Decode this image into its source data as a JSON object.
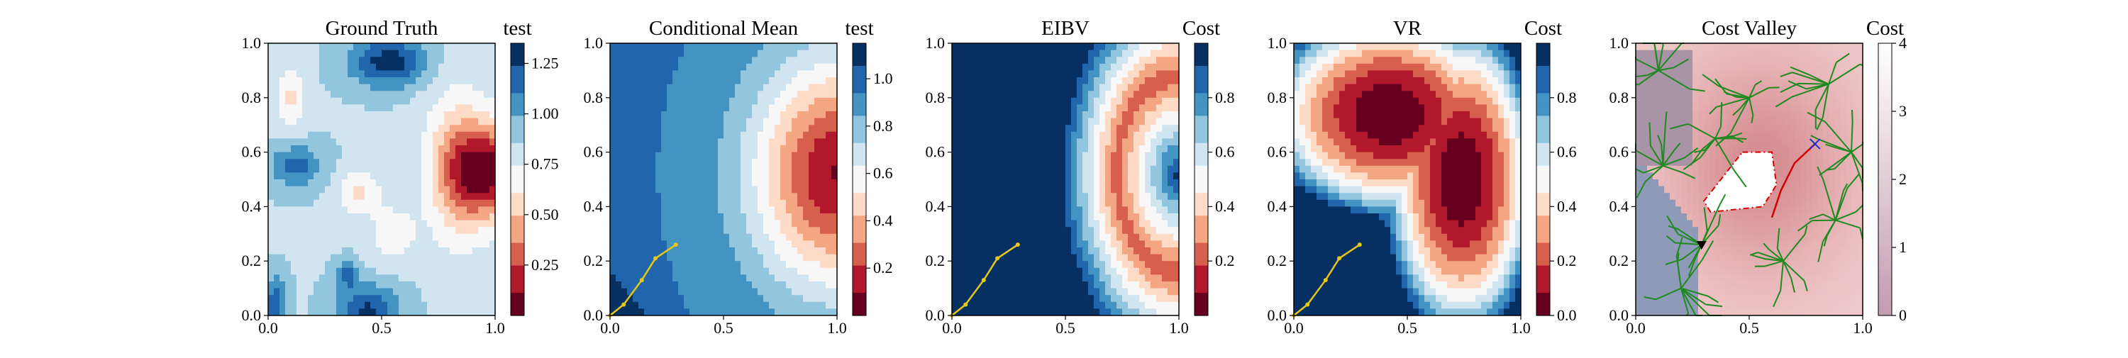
{
  "figure": {
    "panels": [
      {
        "title": "Ground Truth",
        "colorbar_label": "test",
        "field": "truth",
        "colorbar_ticks": [
          "0.25",
          "0.50",
          "0.75",
          "1.00",
          "1.25"
        ],
        "colorbar_tick_values": [
          0.25,
          0.5,
          0.75,
          1.0,
          1.25
        ],
        "colorbar_range": [
          0.0,
          1.35
        ],
        "overlay": "none"
      },
      {
        "title": "Conditional Mean",
        "colorbar_label": "test",
        "field": "mean",
        "colorbar_ticks": [
          "0.2",
          "0.4",
          "0.6",
          "0.8",
          "1.0"
        ],
        "colorbar_tick_values": [
          0.2,
          0.4,
          0.6,
          0.8,
          1.0
        ],
        "colorbar_range": [
          0.0,
          1.15
        ],
        "overlay": "path"
      },
      {
        "title": "EIBV",
        "colorbar_label": "Cost",
        "field": "eibv",
        "colorbar_ticks": [
          "0.2",
          "0.4",
          "0.6",
          "0.8"
        ],
        "colorbar_tick_values": [
          0.2,
          0.4,
          0.6,
          0.8
        ],
        "colorbar_range": [
          0.0,
          1.0
        ],
        "overlay": "path"
      },
      {
        "title": "VR",
        "colorbar_label": "Cost",
        "field": "vr",
        "colorbar_ticks": [
          "0.0",
          "0.2",
          "0.4",
          "0.6",
          "0.8"
        ],
        "colorbar_tick_values": [
          0.0,
          0.2,
          0.4,
          0.6,
          0.8
        ],
        "colorbar_range": [
          0.0,
          1.0
        ],
        "overlay": "path"
      },
      {
        "title": "Cost Valley",
        "colorbar_label": "Cost",
        "field": "valley",
        "colorbar_ticks": [
          "0",
          "1",
          "2",
          "3",
          "4"
        ],
        "colorbar_tick_values": [
          0,
          1,
          2,
          3,
          4
        ],
        "colorbar_range": [
          0,
          4
        ],
        "overlay": "tree"
      }
    ],
    "x_ticks": [
      "0.0",
      "0.5",
      "1.0"
    ],
    "y_ticks": [
      "0.0",
      "0.2",
      "0.4",
      "0.6",
      "0.8",
      "1.0"
    ],
    "colors": {
      "diverging": [
        "#67001f",
        "#b2182b",
        "#d6604d",
        "#f4a582",
        "#fddbc7",
        "#f7f7f7",
        "#d1e5f0",
        "#92c5de",
        "#4393c3",
        "#2166ac",
        "#053061"
      ],
      "path": "#e6c619",
      "tree": "#1f8a1f",
      "route": "#d40000",
      "target_marker": "#1f2fd0",
      "start_marker": "#000000"
    }
  },
  "chart_data": [
    {
      "type": "heatmap",
      "title": "Ground Truth",
      "xlim": [
        0,
        1
      ],
      "ylim": [
        0,
        1
      ],
      "colorbar": {
        "label": "test",
        "range": [
          0.0,
          1.35
        ],
        "ticks": [
          0.25,
          0.5,
          0.75,
          1.0,
          1.25
        ]
      },
      "grid": false
    },
    {
      "type": "heatmap",
      "title": "Conditional Mean",
      "xlim": [
        0,
        1
      ],
      "ylim": [
        0,
        1
      ],
      "colorbar": {
        "label": "test",
        "range": [
          0.0,
          1.15
        ],
        "ticks": [
          0.2,
          0.4,
          0.6,
          0.8,
          1.0
        ]
      },
      "path": {
        "x": [
          0.0,
          0.06,
          0.14,
          0.2,
          0.29
        ],
        "y": [
          0.0,
          0.04,
          0.13,
          0.21,
          0.26
        ]
      },
      "grid": false
    },
    {
      "type": "heatmap",
      "title": "EIBV",
      "xlim": [
        0,
        1
      ],
      "ylim": [
        0,
        1
      ],
      "colorbar": {
        "label": "Cost",
        "range": [
          0.0,
          1.0
        ],
        "ticks": [
          0.2,
          0.4,
          0.6,
          0.8
        ]
      },
      "path": {
        "x": [
          0.0,
          0.06,
          0.14,
          0.2,
          0.29
        ],
        "y": [
          0.0,
          0.04,
          0.13,
          0.21,
          0.26
        ]
      },
      "grid": false
    },
    {
      "type": "heatmap",
      "title": "VR",
      "xlim": [
        0,
        1
      ],
      "ylim": [
        0,
        1
      ],
      "colorbar": {
        "label": "Cost",
        "range": [
          0.0,
          1.0
        ],
        "ticks": [
          0.0,
          0.2,
          0.4,
          0.6,
          0.8
        ]
      },
      "path": {
        "x": [
          0.0,
          0.06,
          0.14,
          0.2,
          0.29
        ],
        "y": [
          0.0,
          0.04,
          0.13,
          0.21,
          0.26
        ]
      },
      "grid": false
    },
    {
      "type": "heatmap",
      "title": "Cost Valley",
      "xlim": [
        0,
        1
      ],
      "ylim": [
        0,
        1
      ],
      "colorbar": {
        "label": "Cost",
        "range": [
          0,
          4
        ],
        "ticks": [
          0,
          1,
          2,
          3,
          4
        ]
      },
      "start": {
        "x": 0.29,
        "y": 0.26
      },
      "target": {
        "x": 0.79,
        "y": 0.63
      },
      "route": {
        "x": [
          0.6,
          0.64,
          0.7,
          0.79
        ],
        "y": [
          0.36,
          0.46,
          0.56,
          0.63
        ]
      },
      "obstacle": {
        "x": [
          0.47,
          0.6,
          0.62,
          0.56,
          0.33,
          0.3,
          0.47
        ],
        "y": [
          0.6,
          0.6,
          0.48,
          0.4,
          0.38,
          0.42,
          0.6
        ]
      },
      "grid": false
    }
  ]
}
